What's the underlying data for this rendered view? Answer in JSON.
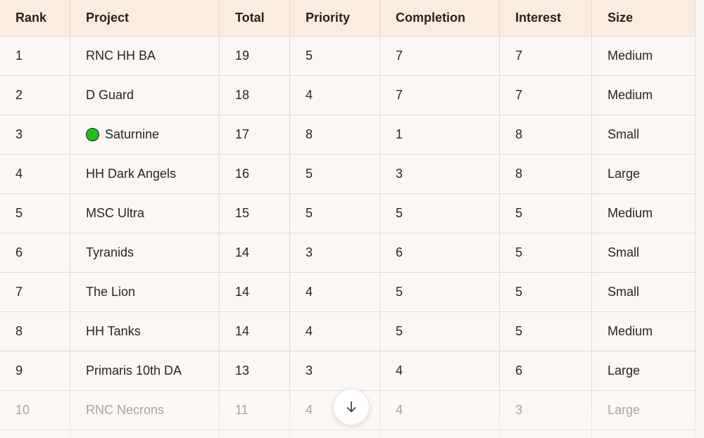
{
  "table": {
    "headers": [
      "Rank",
      "Project",
      "Total",
      "Priority",
      "Completion",
      "Interest",
      "Size"
    ],
    "rows": [
      {
        "rank": "1",
        "project": "RNC HH BA",
        "total": "19",
        "priority": "5",
        "completion": "7",
        "interest": "7",
        "size": "Medium"
      },
      {
        "rank": "2",
        "project": "D Guard",
        "total": "18",
        "priority": "4",
        "completion": "7",
        "interest": "7",
        "size": "Medium"
      },
      {
        "rank": "3",
        "project": "Saturnine",
        "total": "17",
        "priority": "8",
        "completion": "1",
        "interest": "8",
        "size": "Small",
        "status_icon": "green-circle-icon",
        "status_color": "#20c020"
      },
      {
        "rank": "4",
        "project": "HH Dark Angels",
        "total": "16",
        "priority": "5",
        "completion": "3",
        "interest": "8",
        "size": "Large"
      },
      {
        "rank": "5",
        "project": "MSC Ultra",
        "total": "15",
        "priority": "5",
        "completion": "5",
        "interest": "5",
        "size": "Medium"
      },
      {
        "rank": "6",
        "project": "Tyranids",
        "total": "14",
        "priority": "3",
        "completion": "6",
        "interest": "5",
        "size": "Small"
      },
      {
        "rank": "7",
        "project": "The Lion",
        "total": "14",
        "priority": "4",
        "completion": "5",
        "interest": "5",
        "size": "Small"
      },
      {
        "rank": "8",
        "project": "HH Tanks",
        "total": "14",
        "priority": "4",
        "completion": "5",
        "interest": "5",
        "size": "Medium"
      },
      {
        "rank": "9",
        "project": "Primaris 10th DA",
        "total": "13",
        "priority": "3",
        "completion": "4",
        "interest": "6",
        "size": "Large"
      },
      {
        "rank": "10",
        "project": "RNC Necrons",
        "total": "11",
        "priority": "4",
        "completion": "4",
        "interest": "3",
        "size": "Large"
      }
    ]
  },
  "scroll_button": {
    "icon": "arrow-down-icon"
  },
  "colors": {
    "header_bg": "#fcebe1",
    "row_bg": "#fbf7f4",
    "border": "#e6d8cf",
    "text": "#2b2521"
  }
}
